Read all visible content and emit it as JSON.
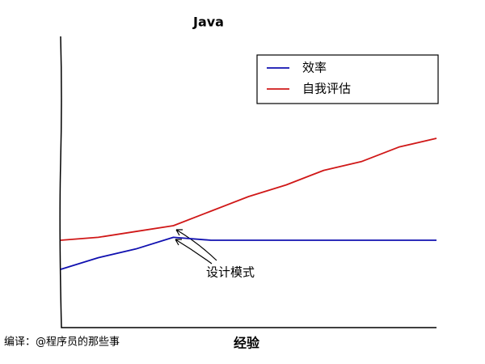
{
  "chart_data": {
    "type": "line",
    "title": "Java",
    "x_label": "经验",
    "credit": "编译：@程序员的那些事",
    "annotation": "设计模式",
    "x": [
      0,
      1,
      2,
      3,
      4,
      5,
      6,
      7,
      8,
      9,
      10
    ],
    "xlim": [
      0,
      10
    ],
    "ylim": [
      0,
      10
    ],
    "legend": "upper right",
    "series": [
      {
        "name": "效率",
        "color": "#1010b0",
        "values": [
          2.0,
          2.4,
          2.7,
          3.1,
          3.0,
          3.0,
          3.0,
          3.0,
          3.0,
          3.0,
          3.0
        ]
      },
      {
        "name": "自我评估",
        "color": "#d01818",
        "values": [
          3.0,
          3.1,
          3.3,
          3.5,
          4.0,
          4.5,
          4.9,
          5.4,
          5.7,
          6.2,
          6.5
        ]
      }
    ]
  }
}
